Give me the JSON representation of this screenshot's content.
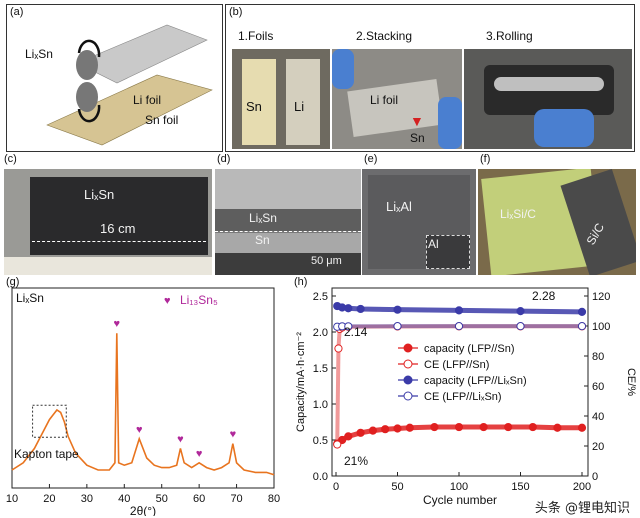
{
  "panel_a": {
    "label": "(a)",
    "lixsn": "LiₓSn",
    "li_foil": "Li foil",
    "sn_foil": "Sn foil"
  },
  "panel_b": {
    "label": "(b)",
    "step1": "1.Foils",
    "step2": "2.Stacking",
    "step3": "3.Rolling",
    "sn": "Sn",
    "li": "Li",
    "li_foil": "Li foil",
    "sn2": "Sn"
  },
  "panel_c": {
    "label": "(c)",
    "lixsn": "LiₓSn",
    "length": "16 cm"
  },
  "panel_d": {
    "label": "(d)",
    "lixsn": "LiₓSn",
    "sn": "Sn",
    "scale": "50 μm"
  },
  "panel_e": {
    "label": "(e)",
    "lixal": "LiₓAl",
    "al": "Al"
  },
  "panel_f": {
    "label": "(f)",
    "lixsic": "LiₓSi/C",
    "sic": "Si/C"
  },
  "panel_g": {
    "label": "(g)",
    "lixsn": "LiₓSn",
    "legend": "Li₁₃Sn₅",
    "kapton": "Kapton tape",
    "xlabel": "2θ(°)"
  },
  "panel_h": {
    "label": "(h)",
    "ylabel": "Capacity/mA·h·cm⁻²",
    "y2label": "CE/%",
    "xlabel": "Cycle number",
    "ann_228": "2.28",
    "ann_214": "2.14",
    "ann_21": "21%"
  },
  "watermark": "头条 @锂电知识",
  "chart_data": [
    {
      "type": "line",
      "title": "",
      "xlabel": "2θ(°)",
      "ylabel": "",
      "xlim": [
        10,
        80
      ],
      "x_ticks": [
        10,
        20,
        30,
        40,
        50,
        60,
        70,
        80
      ],
      "series": [
        {
          "name": "LiₓSn",
          "color": "#e8741f",
          "x": [
            10,
            13,
            16,
            18,
            20,
            21,
            22,
            23,
            24,
            25,
            27,
            30,
            33,
            36,
            37.5,
            38,
            38.5,
            40,
            42,
            44,
            45,
            46,
            48,
            50,
            52,
            54,
            55,
            56,
            58,
            60,
            62,
            64,
            66,
            68,
            69,
            70,
            72,
            75,
            78,
            80
          ],
          "y": [
            5,
            8,
            14,
            20,
            26,
            28,
            30,
            29,
            25,
            19,
            12,
            7,
            5,
            5,
            8,
            62,
            8,
            7,
            8,
            18,
            14,
            10,
            7,
            6,
            6,
            7,
            14,
            8,
            6,
            8,
            6,
            5,
            6,
            8,
            16,
            8,
            5,
            4,
            4,
            3
          ]
        }
      ],
      "peak_markers_2theta": [
        38,
        44,
        55,
        60,
        69
      ],
      "peak_marker_name": "Li₁₃Sn₅"
    },
    {
      "type": "scatter",
      "title": "",
      "xlabel": "Cycle number",
      "ylabel": "Capacity/mA·h·cm⁻²",
      "y2label": "CE/%",
      "xlim": [
        0,
        200
      ],
      "ylim": [
        0.0,
        2.5
      ],
      "y2lim": [
        0,
        120
      ],
      "x_ticks": [
        0,
        50,
        100,
        150,
        200
      ],
      "y_ticks": [
        0.0,
        0.5,
        1.0,
        1.5,
        2.0,
        2.5
      ],
      "y2_ticks": [
        0,
        20,
        40,
        60,
        80,
        100,
        120
      ],
      "series": [
        {
          "name": "capacity (LFP//Sn)",
          "axis": "left",
          "marker": "filled",
          "color": "#e02020",
          "x": [
            1,
            5,
            10,
            20,
            30,
            40,
            50,
            60,
            80,
            100,
            120,
            140,
            160,
            180,
            200
          ],
          "y": [
            0.45,
            0.5,
            0.55,
            0.6,
            0.63,
            0.65,
            0.66,
            0.67,
            0.68,
            0.68,
            0.68,
            0.68,
            0.68,
            0.67,
            0.67
          ]
        },
        {
          "name": "CE (LFP//Sn)",
          "axis": "right",
          "marker": "open",
          "color": "#e02020",
          "x": [
            1,
            2,
            3,
            5,
            10,
            50,
            100,
            150,
            200
          ],
          "y": [
            21,
            85,
            98,
            99,
            99.5,
            99.7,
            99.8,
            99.8,
            99.8
          ]
        },
        {
          "name": "capacity (LFP//LiₓSn)",
          "axis": "left",
          "marker": "filled",
          "color": "#3b3ba8",
          "x": [
            1,
            5,
            10,
            20,
            50,
            100,
            150,
            200
          ],
          "y": [
            2.36,
            2.34,
            2.33,
            2.32,
            2.31,
            2.3,
            2.29,
            2.28
          ]
        },
        {
          "name": "CE (LFP//LiₓSn)",
          "axis": "right",
          "marker": "open",
          "color": "#3b3ba8",
          "x": [
            1,
            5,
            10,
            50,
            100,
            150,
            200
          ],
          "y": [
            99.5,
            99.8,
            99.8,
            99.9,
            99.9,
            99.9,
            99.9
          ]
        }
      ],
      "annotations": [
        "2.28",
        "2.14",
        "21%"
      ]
    }
  ]
}
